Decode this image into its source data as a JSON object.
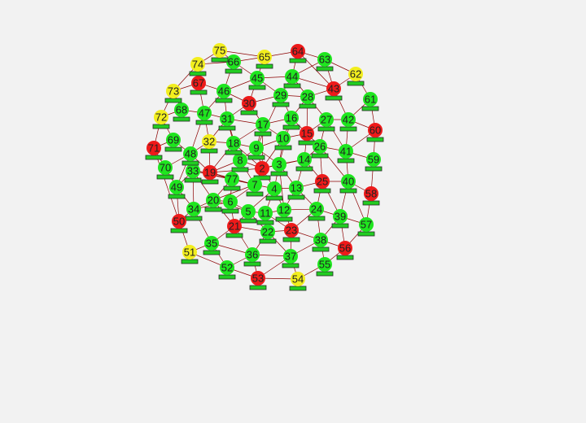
{
  "graph": {
    "title": "",
    "colors": {
      "edge": "#8b0000",
      "green": "#1fe61f",
      "red": "#ee1a1a",
      "yellow": "#f2ee1e",
      "bar": "#22cc22"
    },
    "nodes": [
      {
        "id": "2",
        "state": "red"
      },
      {
        "id": "3",
        "state": "green"
      },
      {
        "id": "4",
        "state": "green"
      },
      {
        "id": "5",
        "state": "green"
      },
      {
        "id": "6",
        "state": "green"
      },
      {
        "id": "7",
        "state": "green"
      },
      {
        "id": "8",
        "state": "green"
      },
      {
        "id": "9",
        "state": "green"
      },
      {
        "id": "10",
        "state": "green"
      },
      {
        "id": "11",
        "state": "green"
      },
      {
        "id": "12",
        "state": "green"
      },
      {
        "id": "13",
        "state": "green"
      },
      {
        "id": "14",
        "state": "green"
      },
      {
        "id": "15",
        "state": "red"
      },
      {
        "id": "16",
        "state": "green"
      },
      {
        "id": "17",
        "state": "green"
      },
      {
        "id": "18",
        "state": "green"
      },
      {
        "id": "19",
        "state": "red"
      },
      {
        "id": "20",
        "state": "green"
      },
      {
        "id": "21",
        "state": "red"
      },
      {
        "id": "22",
        "state": "green"
      },
      {
        "id": "23",
        "state": "red"
      },
      {
        "id": "24",
        "state": "green"
      },
      {
        "id": "25",
        "state": "red"
      },
      {
        "id": "26",
        "state": "green"
      },
      {
        "id": "27",
        "state": "green"
      },
      {
        "id": "28",
        "state": "green"
      },
      {
        "id": "29",
        "state": "green"
      },
      {
        "id": "30",
        "state": "red"
      },
      {
        "id": "31",
        "state": "green"
      },
      {
        "id": "32",
        "state": "yellow"
      },
      {
        "id": "33",
        "state": "green"
      },
      {
        "id": "34",
        "state": "green"
      },
      {
        "id": "35",
        "state": "green"
      },
      {
        "id": "36",
        "state": "green"
      },
      {
        "id": "37",
        "state": "green"
      },
      {
        "id": "38",
        "state": "green"
      },
      {
        "id": "39",
        "state": "green"
      },
      {
        "id": "40",
        "state": "green"
      },
      {
        "id": "41",
        "state": "green"
      },
      {
        "id": "42",
        "state": "green"
      },
      {
        "id": "43",
        "state": "red"
      },
      {
        "id": "44",
        "state": "green"
      },
      {
        "id": "45",
        "state": "green"
      },
      {
        "id": "46",
        "state": "green"
      },
      {
        "id": "47",
        "state": "green"
      },
      {
        "id": "48",
        "state": "green"
      },
      {
        "id": "49",
        "state": "green"
      },
      {
        "id": "50",
        "state": "red"
      },
      {
        "id": "51",
        "state": "yellow"
      },
      {
        "id": "52",
        "state": "green"
      },
      {
        "id": "53",
        "state": "red"
      },
      {
        "id": "54",
        "state": "yellow"
      },
      {
        "id": "55",
        "state": "green"
      },
      {
        "id": "56",
        "state": "red"
      },
      {
        "id": "57",
        "state": "green"
      },
      {
        "id": "58",
        "state": "red"
      },
      {
        "id": "59",
        "state": "green"
      },
      {
        "id": "60",
        "state": "red"
      },
      {
        "id": "61",
        "state": "green"
      },
      {
        "id": "62",
        "state": "yellow"
      },
      {
        "id": "63",
        "state": "green"
      },
      {
        "id": "64",
        "state": "red"
      },
      {
        "id": "65",
        "state": "yellow"
      },
      {
        "id": "66",
        "state": "green"
      },
      {
        "id": "67",
        "state": "red"
      },
      {
        "id": "68",
        "state": "green"
      },
      {
        "id": "69",
        "state": "green"
      },
      {
        "id": "70",
        "state": "green"
      },
      {
        "id": "71",
        "state": "red"
      },
      {
        "id": "72",
        "state": "yellow"
      },
      {
        "id": "73",
        "state": "yellow"
      },
      {
        "id": "74",
        "state": "yellow"
      },
      {
        "id": "75",
        "state": "yellow"
      },
      {
        "id": "77",
        "state": "green"
      }
    ],
    "edges": [
      [
        "2",
        "3"
      ],
      [
        "2",
        "7"
      ],
      [
        "2",
        "9"
      ],
      [
        "2",
        "8"
      ],
      [
        "2",
        "19"
      ],
      [
        "2",
        "14"
      ],
      [
        "2",
        "4"
      ],
      [
        "2",
        "17"
      ],
      [
        "2",
        "10"
      ],
      [
        "2",
        "18"
      ],
      [
        "3",
        "4"
      ],
      [
        "3",
        "13"
      ],
      [
        "3",
        "14"
      ],
      [
        "3",
        "10"
      ],
      [
        "3",
        "12"
      ],
      [
        "3",
        "9"
      ],
      [
        "3",
        "16"
      ],
      [
        "4",
        "11"
      ],
      [
        "4",
        "12"
      ],
      [
        "4",
        "5"
      ],
      [
        "4",
        "13"
      ],
      [
        "4",
        "7"
      ],
      [
        "5",
        "6"
      ],
      [
        "5",
        "11"
      ],
      [
        "5",
        "22"
      ],
      [
        "5",
        "21"
      ],
      [
        "5",
        "20"
      ],
      [
        "6",
        "7"
      ],
      [
        "6",
        "20"
      ],
      [
        "6",
        "21"
      ],
      [
        "6",
        "34"
      ],
      [
        "7",
        "8"
      ],
      [
        "7",
        "19"
      ],
      [
        "7",
        "20"
      ],
      [
        "7",
        "33"
      ],
      [
        "8",
        "18"
      ],
      [
        "8",
        "9"
      ],
      [
        "8",
        "19"
      ],
      [
        "8",
        "31"
      ],
      [
        "9",
        "17"
      ],
      [
        "9",
        "10"
      ],
      [
        "9",
        "18"
      ],
      [
        "9",
        "29"
      ],
      [
        "10",
        "16"
      ],
      [
        "10",
        "15"
      ],
      [
        "10",
        "17"
      ],
      [
        "11",
        "22"
      ],
      [
        "11",
        "12"
      ],
      [
        "11",
        "23"
      ],
      [
        "12",
        "13"
      ],
      [
        "12",
        "23"
      ],
      [
        "12",
        "24"
      ],
      [
        "13",
        "24"
      ],
      [
        "13",
        "25"
      ],
      [
        "13",
        "14"
      ],
      [
        "14",
        "15"
      ],
      [
        "14",
        "26"
      ],
      [
        "14",
        "25"
      ],
      [
        "15",
        "16"
      ],
      [
        "15",
        "27"
      ],
      [
        "15",
        "26"
      ],
      [
        "15",
        "28"
      ],
      [
        "16",
        "29"
      ],
      [
        "16",
        "28"
      ],
      [
        "16",
        "17"
      ],
      [
        "17",
        "30"
      ],
      [
        "17",
        "31"
      ],
      [
        "17",
        "18"
      ],
      [
        "18",
        "31"
      ],
      [
        "18",
        "32"
      ],
      [
        "18",
        "19"
      ],
      [
        "19",
        "33"
      ],
      [
        "19",
        "32"
      ],
      [
        "19",
        "48"
      ],
      [
        "20",
        "34"
      ],
      [
        "20",
        "21"
      ],
      [
        "20",
        "33"
      ],
      [
        "21",
        "35"
      ],
      [
        "21",
        "22"
      ],
      [
        "21",
        "36"
      ],
      [
        "22",
        "36"
      ],
      [
        "22",
        "23"
      ],
      [
        "22",
        "37"
      ],
      [
        "23",
        "37"
      ],
      [
        "23",
        "38"
      ],
      [
        "23",
        "24"
      ],
      [
        "24",
        "39"
      ],
      [
        "24",
        "25"
      ],
      [
        "24",
        "38"
      ],
      [
        "25",
        "40"
      ],
      [
        "25",
        "26"
      ],
      [
        "25",
        "39"
      ],
      [
        "26",
        "41"
      ],
      [
        "26",
        "27"
      ],
      [
        "26",
        "40"
      ],
      [
        "27",
        "42"
      ],
      [
        "27",
        "28"
      ],
      [
        "27",
        "41"
      ],
      [
        "28",
        "43"
      ],
      [
        "28",
        "44"
      ],
      [
        "28",
        "29"
      ],
      [
        "29",
        "44"
      ],
      [
        "29",
        "45"
      ],
      [
        "29",
        "30"
      ],
      [
        "30",
        "45"
      ],
      [
        "30",
        "46"
      ],
      [
        "30",
        "31"
      ],
      [
        "31",
        "46"
      ],
      [
        "31",
        "47"
      ],
      [
        "31",
        "32"
      ],
      [
        "32",
        "47"
      ],
      [
        "32",
        "48"
      ],
      [
        "33",
        "48"
      ],
      [
        "33",
        "49"
      ],
      [
        "33",
        "34"
      ],
      [
        "34",
        "49"
      ],
      [
        "34",
        "50"
      ],
      [
        "34",
        "35"
      ],
      [
        "35",
        "51"
      ],
      [
        "35",
        "52"
      ],
      [
        "35",
        "36"
      ],
      [
        "36",
        "52"
      ],
      [
        "36",
        "53"
      ],
      [
        "36",
        "37"
      ],
      [
        "37",
        "53"
      ],
      [
        "37",
        "54"
      ],
      [
        "37",
        "38"
      ],
      [
        "38",
        "55"
      ],
      [
        "38",
        "56"
      ],
      [
        "38",
        "39"
      ],
      [
        "39",
        "57"
      ],
      [
        "39",
        "56"
      ],
      [
        "39",
        "40"
      ],
      [
        "40",
        "58"
      ],
      [
        "40",
        "57"
      ],
      [
        "40",
        "41"
      ],
      [
        "41",
        "59"
      ],
      [
        "41",
        "60"
      ],
      [
        "41",
        "42"
      ],
      [
        "42",
        "61"
      ],
      [
        "42",
        "60"
      ],
      [
        "42",
        "43"
      ],
      [
        "43",
        "62"
      ],
      [
        "43",
        "63"
      ],
      [
        "43",
        "44"
      ],
      [
        "44",
        "63"
      ],
      [
        "44",
        "64"
      ],
      [
        "44",
        "45"
      ],
      [
        "45",
        "65"
      ],
      [
        "45",
        "66"
      ],
      [
        "45",
        "46"
      ],
      [
        "46",
        "66"
      ],
      [
        "46",
        "67"
      ],
      [
        "46",
        "47"
      ],
      [
        "47",
        "68"
      ],
      [
        "47",
        "67"
      ],
      [
        "47",
        "48"
      ],
      [
        "48",
        "69"
      ],
      [
        "48",
        "70"
      ],
      [
        "48",
        "49"
      ],
      [
        "49",
        "70"
      ],
      [
        "49",
        "50"
      ],
      [
        "49",
        "71"
      ],
      [
        "50",
        "51"
      ],
      [
        "50",
        "71"
      ],
      [
        "51",
        "52"
      ],
      [
        "52",
        "53"
      ],
      [
        "53",
        "54"
      ],
      [
        "54",
        "55"
      ],
      [
        "55",
        "56"
      ],
      [
        "56",
        "57"
      ],
      [
        "57",
        "58"
      ],
      [
        "58",
        "59"
      ],
      [
        "59",
        "60"
      ],
      [
        "60",
        "61"
      ],
      [
        "61",
        "62"
      ],
      [
        "62",
        "63"
      ],
      [
        "63",
        "64"
      ],
      [
        "64",
        "65"
      ],
      [
        "65",
        "66"
      ],
      [
        "66",
        "75"
      ],
      [
        "66",
        "74"
      ],
      [
        "67",
        "74"
      ],
      [
        "67",
        "73"
      ],
      [
        "68",
        "73"
      ],
      [
        "68",
        "72"
      ],
      [
        "69",
        "72"
      ],
      [
        "69",
        "71"
      ],
      [
        "70",
        "71"
      ],
      [
        "74",
        "75"
      ],
      [
        "73",
        "74"
      ],
      [
        "72",
        "73"
      ],
      [
        "71",
        "72"
      ],
      [
        "75",
        "65"
      ],
      [
        "64",
        "43"
      ],
      [
        "7",
        "77"
      ],
      [
        "77",
        "6"
      ],
      [
        "77",
        "20"
      ],
      [
        "77",
        "19"
      ],
      [
        "77",
        "33"
      ]
    ]
  }
}
